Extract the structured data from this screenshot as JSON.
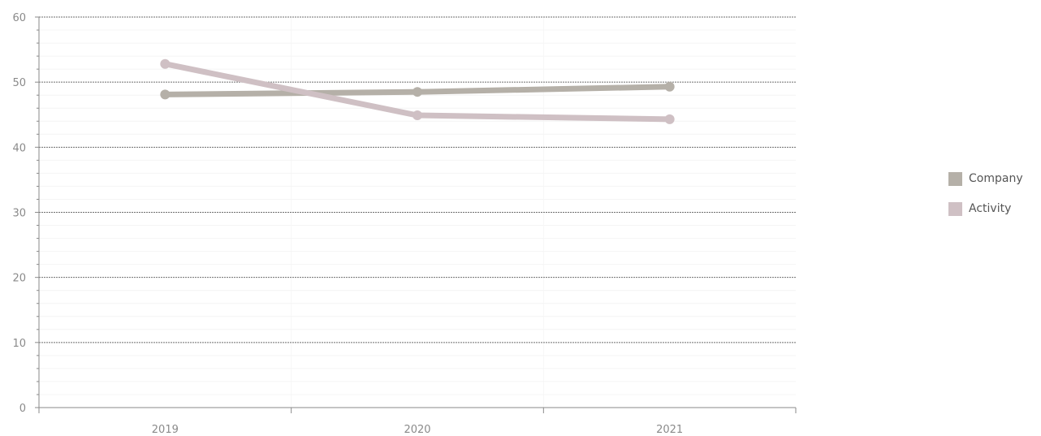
{
  "chart_data": {
    "type": "line",
    "categories": [
      "2019",
      "2020",
      "2021"
    ],
    "series": [
      {
        "name": "Company",
        "values": [
          48.1,
          48.5,
          49.3
        ],
        "color": "#b5b0a8"
      },
      {
        "name": "Activity",
        "values": [
          52.8,
          44.9,
          44.3
        ],
        "color": "#cfc0c4"
      }
    ],
    "y_ticks": [
      "0",
      "10",
      "20",
      "30",
      "40",
      "50",
      "60"
    ],
    "ylim": [
      0,
      60
    ],
    "title": "",
    "xlabel": "",
    "ylabel": "",
    "grid": true,
    "legend_position": "right"
  }
}
